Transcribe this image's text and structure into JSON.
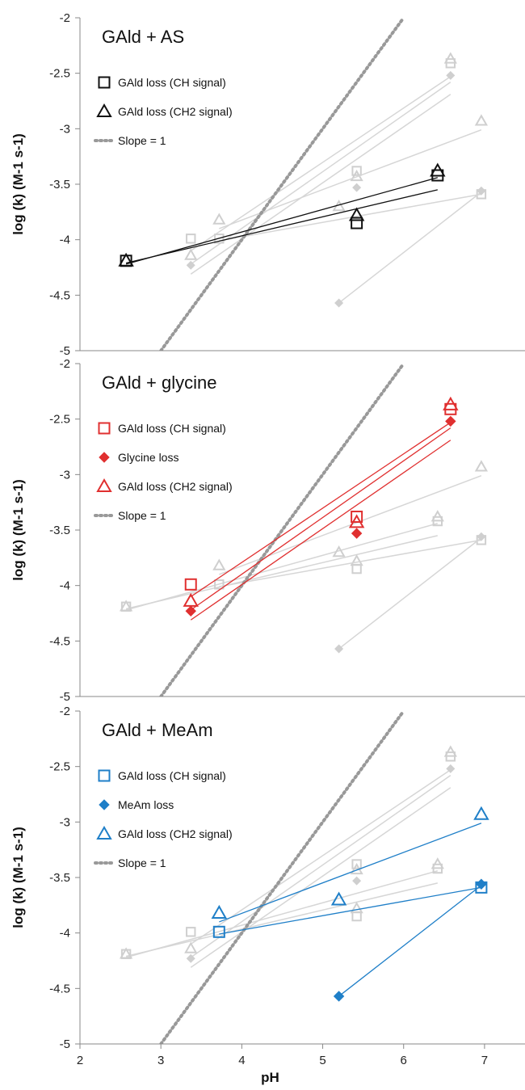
{
  "chart_data": {
    "type": "scatter",
    "x_axis": {
      "label": "pH",
      "range": [
        2,
        7.5
      ],
      "ticks": [
        2,
        3,
        4,
        5,
        6,
        7
      ]
    },
    "y_axis": {
      "label": "log (k) (M-1 s-1)",
      "range": [
        -5,
        -2
      ],
      "ticks": [
        -2,
        -2.5,
        -3,
        -3.5,
        -4,
        -4.5,
        -5
      ]
    },
    "grid": false,
    "legend_position": "top-left",
    "slope_line": {
      "label": "Slope = 1",
      "x": [
        3.0,
        6.0
      ],
      "y": [
        -5.0,
        -2.0
      ]
    },
    "panels": [
      {
        "title": "GAld + AS",
        "color": "#111111",
        "series": [
          {
            "name": "GAld loss (CH signal)",
            "marker": "square",
            "x": [
              2.57,
              5.42,
              6.42
            ],
            "y": [
              -4.19,
              -3.85,
              -3.42
            ],
            "fit": [
              [
                2.57,
                -4.22
              ],
              [
                6.42,
                -3.44
              ]
            ]
          },
          {
            "name": "GAld loss (CH2 signal)",
            "marker": "triangle",
            "x": [
              2.57,
              5.42,
              6.42
            ],
            "y": [
              -4.19,
              -3.78,
              -3.38
            ],
            "fit": [
              [
                2.57,
                -4.21
              ],
              [
                6.42,
                -3.55
              ]
            ]
          }
        ]
      },
      {
        "title": "GAld + glycine",
        "color": "#e03030",
        "series": [
          {
            "name": "GAld loss (CH signal)",
            "marker": "square",
            "x": [
              3.37,
              5.42,
              6.58
            ],
            "y": [
              -3.99,
              -3.38,
              -2.41
            ],
            "fit": [
              [
                3.37,
                -4.1
              ],
              [
                6.58,
                -2.53
              ]
            ]
          },
          {
            "name": "Glycine loss",
            "marker": "diamond",
            "x": [
              3.37,
              5.42,
              6.58
            ],
            "y": [
              -4.23,
              -3.53,
              -2.52
            ],
            "fit": [
              [
                3.37,
                -4.22
              ],
              [
                6.58,
                -2.58
              ]
            ]
          },
          {
            "name": "GAld loss (CH2 signal)",
            "marker": "triangle",
            "x": [
              3.37,
              5.42,
              6.58
            ],
            "y": [
              -4.14,
              -3.43,
              -2.37
            ],
            "fit": [
              [
                3.37,
                -4.31
              ],
              [
                6.58,
                -2.69
              ]
            ]
          }
        ]
      },
      {
        "title": "GAld + MeAm",
        "color": "#1f7fc8",
        "series": [
          {
            "name": "GAld loss (CH signal)",
            "marker": "square",
            "x": [
              3.72,
              6.96
            ],
            "y": [
              -3.99,
              -3.59
            ],
            "fit": [
              [
                3.72,
                -4.01
              ],
              [
                6.96,
                -3.59
              ]
            ]
          },
          {
            "name": "MeAm loss",
            "marker": "diamond",
            "x": [
              5.2,
              6.96
            ],
            "y": [
              -4.57,
              -3.56
            ],
            "fit": [
              [
                5.2,
                -4.57
              ],
              [
                6.96,
                -3.57
              ]
            ]
          },
          {
            "name": "GAld loss (CH2 signal)",
            "marker": "triangle",
            "x": [
              3.72,
              5.2,
              6.96
            ],
            "y": [
              -3.82,
              -3.7,
              -2.93
            ],
            "fit": [
              [
                3.72,
                -3.9
              ],
              [
                6.96,
                -3.01
              ]
            ]
          }
        ]
      }
    ]
  }
}
